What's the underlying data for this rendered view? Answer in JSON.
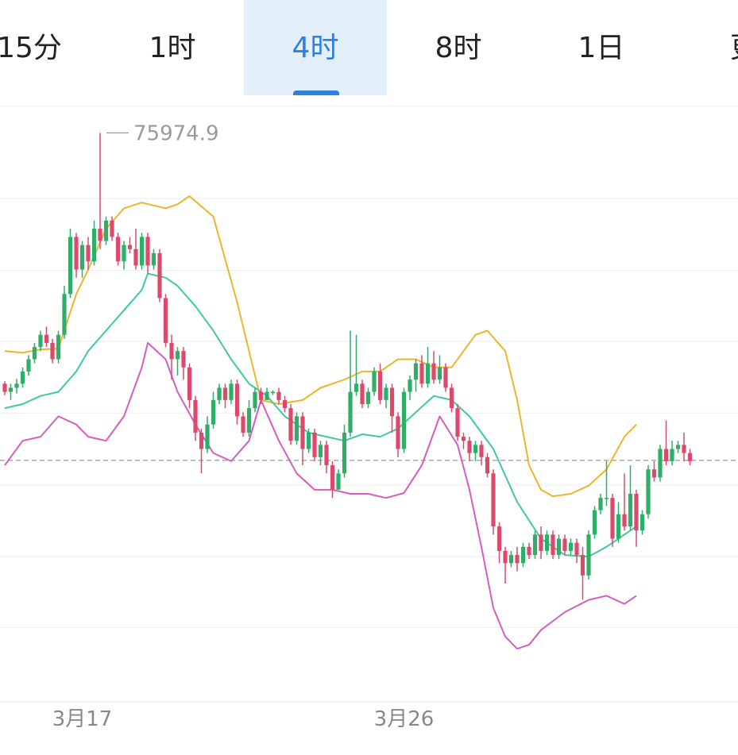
{
  "tabs": [
    {
      "label": "15分",
      "active": false
    },
    {
      "label": "1时",
      "active": false
    },
    {
      "label": "4时",
      "active": true
    },
    {
      "label": "8时",
      "active": false
    },
    {
      "label": "1日",
      "active": false
    },
    {
      "label": "更",
      "active": false
    }
  ],
  "colors": {
    "up": "#2eae66",
    "down": "#db4a6a",
    "upper_band": "#eab62b",
    "middle_band": "#3fc9a3",
    "lower_band": "#d65cc0",
    "accent": "#2f7fe0",
    "grid": "#eeeeee",
    "current_line": "#999999"
  },
  "chart_data": {
    "type": "candlestick",
    "x_ticks": [
      {
        "label": "3月17",
        "index": 13
      },
      {
        "label": "3月26",
        "index": 67
      }
    ],
    "max_label": "75974.9",
    "max_index": 16,
    "y_range": [
      69000,
      76300
    ],
    "current_price": 71960,
    "grid_values": [
      75170,
      74290,
      73420,
      72540,
      71660,
      70780,
      69910
    ],
    "candles": [
      [
        72900,
        72800,
        72930,
        72760
      ],
      [
        72800,
        72850,
        72900,
        72700
      ],
      [
        72850,
        72900,
        72960,
        72780
      ],
      [
        72900,
        73050,
        73100,
        72850
      ],
      [
        73050,
        73200,
        73250,
        73000
      ],
      [
        73200,
        73350,
        73400,
        73150
      ],
      [
        73350,
        73500,
        73550,
        73300
      ],
      [
        73500,
        73400,
        73600,
        73350
      ],
      [
        73400,
        73200,
        73450,
        73150
      ],
      [
        73200,
        73500,
        73550,
        73150
      ],
      [
        73500,
        74000,
        74100,
        73450
      ],
      [
        74000,
        74700,
        74800,
        73950
      ],
      [
        74700,
        74300,
        74750,
        74200
      ],
      [
        74300,
        74600,
        74650,
        74200
      ],
      [
        74600,
        74400,
        74700,
        74300
      ],
      [
        74400,
        74800,
        74900,
        74350
      ],
      [
        74800,
        74650,
        75974.9,
        74550
      ],
      [
        74650,
        74900,
        74950,
        74600
      ],
      [
        74900,
        74700,
        74950,
        74650
      ],
      [
        74700,
        74400,
        74750,
        74350
      ],
      [
        74400,
        74600,
        74650,
        74300
      ],
      [
        74600,
        74550,
        74700,
        74500
      ],
      [
        74550,
        74350,
        74800,
        74300
      ],
      [
        74350,
        74700,
        74750,
        74300
      ],
      [
        74700,
        74350,
        74750,
        74250
      ],
      [
        74350,
        74500,
        74550,
        74300
      ],
      [
        74500,
        73950,
        74550,
        73900
      ],
      [
        73950,
        73400,
        74000,
        73350
      ],
      [
        73400,
        73200,
        73500,
        72950
      ],
      [
        73200,
        73300,
        73350,
        73000
      ],
      [
        73300,
        73100,
        73350,
        72950
      ],
      [
        73100,
        72700,
        73150,
        72600
      ],
      [
        72700,
        72300,
        72750,
        72200
      ],
      [
        72300,
        72100,
        72350,
        71800
      ],
      [
        72100,
        72400,
        72500,
        72050
      ],
      [
        72400,
        72700,
        72800,
        72350
      ],
      [
        72700,
        72850,
        72900,
        72650
      ],
      [
        72850,
        72700,
        72900,
        72600
      ],
      [
        72700,
        72900,
        72950,
        72650
      ],
      [
        72900,
        72500,
        72950,
        72400
      ],
      [
        72500,
        72300,
        72550,
        72250
      ],
      [
        72300,
        72600,
        72700,
        72250
      ],
      [
        72600,
        72800,
        72850,
        72550
      ],
      [
        72800,
        72700,
        72850,
        72650
      ],
      [
        72700,
        72800,
        72850,
        72700
      ],
      [
        72800,
        72800,
        72820,
        72760
      ],
      [
        72800,
        72700,
        72850,
        72650
      ],
      [
        72700,
        72600,
        72750,
        72550
      ],
      [
        72600,
        72200,
        72650,
        72150
      ],
      [
        72200,
        72500,
        72550,
        72150
      ],
      [
        72500,
        72100,
        72550,
        71900
      ],
      [
        72100,
        72300,
        72350,
        72050
      ],
      [
        72300,
        72000,
        72350,
        71950
      ],
      [
        72000,
        72150,
        72200,
        71900
      ],
      [
        72150,
        71900,
        72200,
        71800
      ],
      [
        71900,
        71600,
        71950,
        71500
      ],
      [
        71600,
        71800,
        71850,
        71650
      ],
      [
        71800,
        72300,
        72400,
        71750
      ],
      [
        72300,
        72800,
        73550,
        72250
      ],
      [
        72800,
        72900,
        73500,
        72750
      ],
      [
        72900,
        72650,
        72950,
        72600
      ],
      [
        72650,
        72800,
        72850,
        72600
      ],
      [
        72800,
        73050,
        73100,
        72750
      ],
      [
        73050,
        72700,
        73150,
        72650
      ],
      [
        72700,
        72850,
        72900,
        72600
      ],
      [
        72850,
        72500,
        72900,
        72300
      ],
      [
        72500,
        72100,
        72550,
        72000
      ],
      [
        72100,
        72800,
        72850,
        72050
      ],
      [
        72800,
        72950,
        73000,
        72700
      ],
      [
        72950,
        73150,
        73200,
        72800
      ],
      [
        73150,
        72900,
        73250,
        72850
      ],
      [
        72900,
        73150,
        73350,
        72850
      ],
      [
        73150,
        72950,
        73300,
        72900
      ],
      [
        72950,
        73100,
        73250,
        72900
      ],
      [
        73100,
        72850,
        73150,
        72800
      ],
      [
        72850,
        72600,
        72900,
        72550
      ],
      [
        72600,
        72250,
        72650,
        72200
      ],
      [
        72250,
        72200,
        72300,
        72100
      ],
      [
        72200,
        72050,
        72250,
        71950
      ],
      [
        72050,
        72150,
        72200,
        71950
      ],
      [
        72150,
        72000,
        72200,
        71900
      ],
      [
        72000,
        71800,
        72050,
        71750
      ],
      [
        71800,
        71150,
        71850,
        71050
      ],
      [
        71150,
        70850,
        71200,
        70700
      ],
      [
        70850,
        70700,
        70900,
        70450
      ],
      [
        70700,
        70800,
        70850,
        70650
      ],
      [
        70800,
        70700,
        70900,
        70600
      ],
      [
        70700,
        70900,
        70950,
        70650
      ],
      [
        70900,
        70800,
        70950,
        70750
      ],
      [
        70800,
        71050,
        71100,
        70750
      ],
      [
        71050,
        70850,
        71150,
        70750
      ],
      [
        70850,
        71050,
        71100,
        70800
      ],
      [
        71050,
        70800,
        71100,
        70750
      ],
      [
        70800,
        71000,
        71050,
        70750
      ],
      [
        71000,
        70850,
        71050,
        70800
      ],
      [
        70850,
        70950,
        71000,
        70800
      ],
      [
        70950,
        70800,
        71000,
        70700
      ],
      [
        70800,
        70550,
        70900,
        70250
      ],
      [
        70550,
        71050,
        71100,
        70500
      ],
      [
        71050,
        71350,
        71400,
        71000
      ],
      [
        71350,
        71500,
        71550,
        71300
      ],
      [
        71500,
        71500,
        71950,
        71400
      ],
      [
        71500,
        71000,
        71550,
        70900
      ],
      [
        71000,
        71300,
        71450,
        70950
      ],
      [
        71300,
        71150,
        71800,
        71100
      ],
      [
        71150,
        71550,
        71900,
        71100
      ],
      [
        71550,
        71100,
        71600,
        70900
      ],
      [
        71100,
        71300,
        71350,
        71050
      ],
      [
        71300,
        71850,
        71900,
        71250
      ],
      [
        71850,
        71750,
        71950,
        71700
      ],
      [
        71750,
        72100,
        72150,
        71700
      ],
      [
        72100,
        71950,
        72450,
        71900
      ],
      [
        71950,
        72100,
        72200,
        71900
      ],
      [
        72100,
        72150,
        72200,
        72050
      ],
      [
        72150,
        72050,
        72300,
        71950
      ],
      [
        72050,
        71950,
        72100,
        71900
      ]
    ],
    "bands": {
      "upper": [
        [
          0,
          73300
        ],
        [
          3,
          73280
        ],
        [
          6,
          73320
        ],
        [
          9,
          73330
        ],
        [
          12,
          74000
        ],
        [
          14,
          74300
        ],
        [
          17,
          74800
        ],
        [
          20,
          75050
        ],
        [
          23,
          75120
        ],
        [
          27,
          75050
        ],
        [
          29,
          75100
        ],
        [
          31,
          75200
        ],
        [
          35,
          74950
        ],
        [
          39,
          73900
        ],
        [
          43,
          72700
        ],
        [
          46,
          72650
        ],
        [
          50,
          72700
        ],
        [
          53,
          72850
        ],
        [
          57,
          72950
        ],
        [
          60,
          73050
        ],
        [
          63,
          73050
        ],
        [
          66,
          73200
        ],
        [
          69,
          73200
        ],
        [
          72,
          73100
        ],
        [
          75,
          73100
        ],
        [
          79,
          73500
        ],
        [
          81,
          73550
        ],
        [
          84,
          73300
        ],
        [
          86,
          72700
        ],
        [
          88,
          71900
        ],
        [
          90,
          71600
        ],
        [
          92,
          71520
        ],
        [
          95,
          71550
        ],
        [
          98,
          71650
        ],
        [
          101,
          71850
        ],
        [
          104,
          72250
        ],
        [
          106,
          72400
        ]
      ],
      "middle": [
        [
          0,
          72600
        ],
        [
          3,
          72650
        ],
        [
          6,
          72750
        ],
        [
          9,
          72800
        ],
        [
          12,
          73050
        ],
        [
          14,
          73300
        ],
        [
          17,
          73550
        ],
        [
          20,
          73800
        ],
        [
          23,
          74050
        ],
        [
          24,
          74250
        ],
        [
          27,
          74200
        ],
        [
          29,
          74100
        ],
        [
          32,
          73850
        ],
        [
          35,
          73550
        ],
        [
          38,
          73200
        ],
        [
          41,
          72900
        ],
        [
          44,
          72750
        ],
        [
          47,
          72500
        ],
        [
          51,
          72300
        ],
        [
          54,
          72250
        ],
        [
          57,
          72200
        ],
        [
          60,
          72280
        ],
        [
          63,
          72250
        ],
        [
          66,
          72350
        ],
        [
          69,
          72550
        ],
        [
          72,
          72750
        ],
        [
          75,
          72700
        ],
        [
          78,
          72500
        ],
        [
          82,
          72100
        ],
        [
          86,
          71450
        ],
        [
          90,
          71000
        ],
        [
          94,
          70800
        ],
        [
          98,
          70780
        ],
        [
          101,
          70900
        ],
        [
          104,
          71050
        ],
        [
          106,
          71150
        ]
      ],
      "lower": [
        [
          0,
          71900
        ],
        [
          3,
          72200
        ],
        [
          6,
          72250
        ],
        [
          9,
          72500
        ],
        [
          12,
          72400
        ],
        [
          14,
          72250
        ],
        [
          17,
          72200
        ],
        [
          20,
          72500
        ],
        [
          23,
          73100
        ],
        [
          24,
          73400
        ],
        [
          27,
          73200
        ],
        [
          29,
          72800
        ],
        [
          32,
          72400
        ],
        [
          35,
          72050
        ],
        [
          38,
          71950
        ],
        [
          41,
          72200
        ],
        [
          43,
          72700
        ],
        [
          46,
          72200
        ],
        [
          49,
          71800
        ],
        [
          52,
          71600
        ],
        [
          55,
          71600
        ],
        [
          58,
          71550
        ],
        [
          61,
          71550
        ],
        [
          64,
          71500
        ],
        [
          67,
          71560
        ],
        [
          70,
          71900
        ],
        [
          73,
          72500
        ],
        [
          76,
          72150
        ],
        [
          78,
          71600
        ],
        [
          80,
          70900
        ],
        [
          82,
          70150
        ],
        [
          84,
          69800
        ],
        [
          86,
          69650
        ],
        [
          88,
          69700
        ],
        [
          90,
          69880
        ],
        [
          94,
          70100
        ],
        [
          98,
          70250
        ],
        [
          101,
          70300
        ],
        [
          104,
          70200
        ],
        [
          106,
          70300
        ]
      ]
    }
  }
}
